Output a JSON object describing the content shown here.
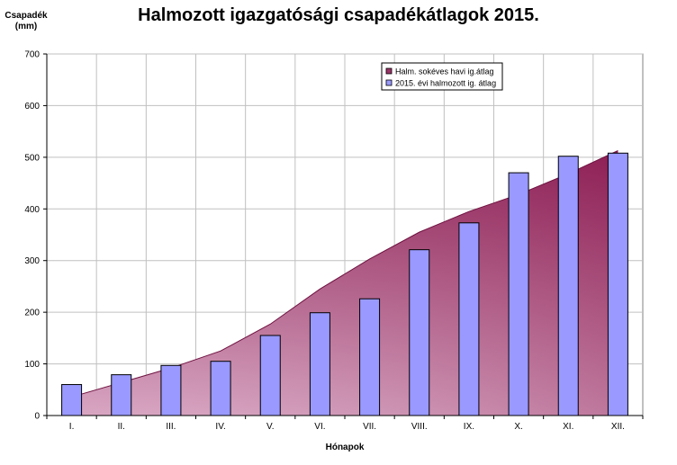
{
  "chart_data": {
    "type": "bar",
    "title": "Halmozott igazgatósági csapadékátlagok 2015.",
    "ylabel_line1": "Csapadék",
    "ylabel_line2": "(mm)",
    "xlabel": "Hónapok",
    "ylim": [
      0,
      700
    ],
    "yticks": [
      0,
      100,
      200,
      300,
      400,
      500,
      600,
      700
    ],
    "grid": true,
    "legend_position": "top-center",
    "categories": [
      "I.",
      "II.",
      "III.",
      "IV.",
      "V.",
      "VI.",
      "VII.",
      "VIII.",
      "IX.",
      "X.",
      "XI.",
      "XII."
    ],
    "series": [
      {
        "name": "Halm. sokéves havi ig.átlag",
        "type": "area",
        "color": "#993366",
        "values": [
          36,
          64,
          92,
          125,
          177,
          245,
          303,
          355,
          395,
          428,
          468,
          513
        ]
      },
      {
        "name": "2015. évi halmozott ig. átlag",
        "type": "bar",
        "color": "#9999ff",
        "values": [
          60,
          79,
          97,
          105,
          155,
          199,
          226,
          321,
          373,
          470,
          502,
          508
        ]
      }
    ]
  }
}
